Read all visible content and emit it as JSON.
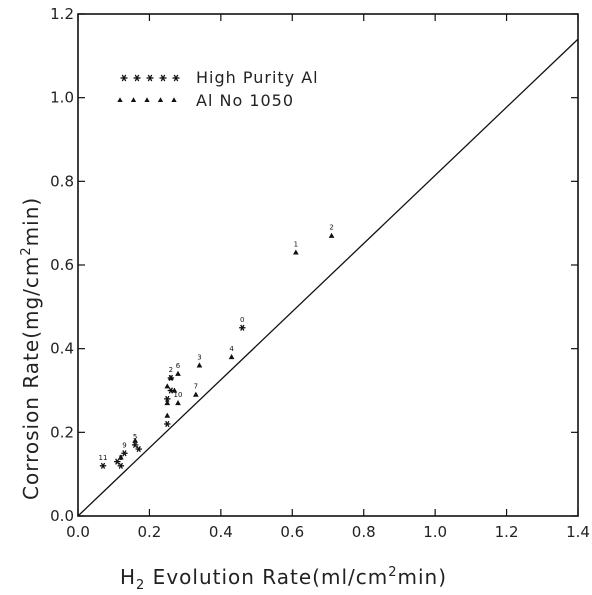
{
  "chart_data": {
    "type": "scatter",
    "xlabel_main": "H",
    "xlabel_sub": "2",
    "xlabel_rest": " Evolution Rate(ml/cm",
    "xlabel_sup": "2",
    "xlabel_end": "min)",
    "ylabel_main": "Corrosion Rate(mg/cm",
    "ylabel_sup": "2",
    "ylabel_end": "min)",
    "xlim": [
      0,
      1.4
    ],
    "ylim": [
      0,
      1.2
    ],
    "xticks": [
      "0.0",
      "0.2",
      "0.4",
      "0.6",
      "0.8",
      "1.0",
      "1.2",
      "1.4"
    ],
    "yticks": [
      "0.0",
      "0.2",
      "0.4",
      "0.6",
      "0.8",
      "1.0",
      "1.2"
    ],
    "xtick_values": [
      0,
      0.2,
      0.4,
      0.6,
      0.8,
      1.0,
      1.2,
      1.4
    ],
    "ytick_values": [
      0,
      0.2,
      0.4,
      0.6,
      0.8,
      1.0,
      1.2
    ],
    "grid": false,
    "legend_position": "top-left",
    "reference_line": {
      "from": [
        0,
        0
      ],
      "to": [
        1.4,
        1.14
      ]
    },
    "series": [
      {
        "name": "High Purity Al",
        "marker": "star",
        "points": [
          {
            "x": 0.07,
            "y": 0.12,
            "label": "11"
          },
          {
            "x": 0.11,
            "y": 0.13,
            "label": ""
          },
          {
            "x": 0.12,
            "y": 0.12,
            "label": "8"
          },
          {
            "x": 0.13,
            "y": 0.15,
            "label": "9"
          },
          {
            "x": 0.16,
            "y": 0.17,
            "label": "5"
          },
          {
            "x": 0.17,
            "y": 0.16,
            "label": ""
          },
          {
            "x": 0.25,
            "y": 0.22,
            "label": ""
          },
          {
            "x": 0.25,
            "y": 0.28,
            "label": ""
          },
          {
            "x": 0.26,
            "y": 0.3,
            "label": ""
          },
          {
            "x": 0.26,
            "y": 0.33,
            "label": ""
          },
          {
            "x": 0.46,
            "y": 0.45,
            "label": "0"
          }
        ]
      },
      {
        "name": "Al No 1050",
        "marker": "triangle",
        "points": [
          {
            "x": 0.12,
            "y": 0.14,
            "label": ""
          },
          {
            "x": 0.16,
            "y": 0.18,
            "label": ""
          },
          {
            "x": 0.25,
            "y": 0.24,
            "label": ""
          },
          {
            "x": 0.25,
            "y": 0.27,
            "label": ""
          },
          {
            "x": 0.25,
            "y": 0.31,
            "label": ""
          },
          {
            "x": 0.26,
            "y": 0.33,
            "label": "2"
          },
          {
            "x": 0.28,
            "y": 0.34,
            "label": "6"
          },
          {
            "x": 0.27,
            "y": 0.3,
            "label": ""
          },
          {
            "x": 0.28,
            "y": 0.27,
            "label": "10"
          },
          {
            "x": 0.33,
            "y": 0.29,
            "label": "7"
          },
          {
            "x": 0.34,
            "y": 0.36,
            "label": "3"
          },
          {
            "x": 0.43,
            "y": 0.38,
            "label": "4"
          },
          {
            "x": 0.61,
            "y": 0.63,
            "label": "1"
          },
          {
            "x": 0.71,
            "y": 0.67,
            "label": "2"
          }
        ]
      }
    ]
  }
}
